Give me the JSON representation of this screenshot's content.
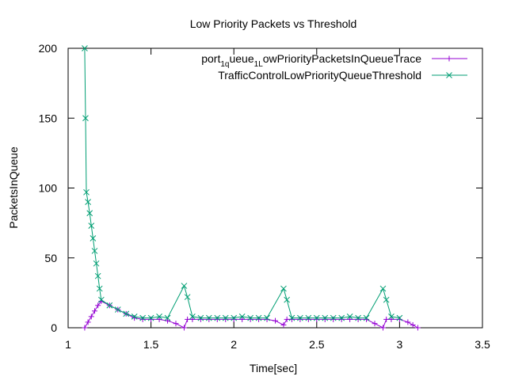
{
  "chart_data": {
    "type": "line",
    "title": "Low Priority Packets vs Threshold",
    "xlabel": "Time[sec]",
    "ylabel": "PacketsInQueue",
    "xlim": [
      1,
      3.5
    ],
    "ylim": [
      0,
      200
    ],
    "xticks": [
      "1",
      "1.5",
      "2",
      "2.5",
      "3",
      "3.5"
    ],
    "xtick_values": [
      1,
      1.5,
      2,
      2.5,
      3,
      3.5
    ],
    "yticks": [
      "0",
      "50",
      "100",
      "150",
      "200"
    ],
    "ytick_values": [
      0,
      50,
      100,
      150,
      200
    ],
    "grid": false,
    "legend_position": "top-right",
    "series": [
      {
        "name": "port_1_queue_1_LowPriorityPacketsInQueueTrace",
        "legend_parts": {
          "base1": "port",
          "sub1": "1",
          "base2": "q",
          "mid": "ueue",
          "sub2": "1",
          "base3": "L",
          "end": "owPriorityPacketsInQueueTrace"
        },
        "color": "#9400d3",
        "marker": "plus",
        "x": [
          1.1,
          1.12,
          1.14,
          1.16,
          1.18,
          1.2,
          1.25,
          1.3,
          1.35,
          1.4,
          1.45,
          1.5,
          1.55,
          1.6,
          1.65,
          1.7,
          1.72,
          1.75,
          1.8,
          1.85,
          1.9,
          1.95,
          2.0,
          2.05,
          2.1,
          2.15,
          2.2,
          2.25,
          2.3,
          2.32,
          2.35,
          2.4,
          2.45,
          2.5,
          2.55,
          2.6,
          2.65,
          2.7,
          2.75,
          2.8,
          2.85,
          2.9,
          2.92,
          2.95,
          3.0,
          3.05,
          3.08,
          3.11
        ],
        "y": [
          0,
          4,
          8,
          12,
          16,
          19,
          16,
          13,
          10,
          7,
          6,
          6,
          6,
          5,
          3,
          0,
          6,
          6,
          6,
          6,
          6,
          6,
          6,
          6,
          6,
          6,
          6,
          5,
          2,
          6,
          6,
          6,
          6,
          6,
          6,
          6,
          6,
          6,
          6,
          6,
          3,
          0,
          6,
          6,
          6,
          4,
          2,
          0
        ]
      },
      {
        "name": "TrafficControlLowPriorityQueueThreshold",
        "color": "#009e73",
        "marker": "x",
        "x": [
          1.1,
          1.105,
          1.11,
          1.12,
          1.13,
          1.14,
          1.15,
          1.16,
          1.17,
          1.18,
          1.19,
          1.2,
          1.25,
          1.3,
          1.35,
          1.4,
          1.45,
          1.5,
          1.55,
          1.6,
          1.7,
          1.72,
          1.75,
          1.8,
          1.85,
          1.9,
          1.95,
          2.0,
          2.05,
          2.1,
          2.15,
          2.2,
          2.3,
          2.32,
          2.35,
          2.4,
          2.45,
          2.5,
          2.55,
          2.6,
          2.65,
          2.7,
          2.75,
          2.8,
          2.9,
          2.92,
          2.95,
          3.0
        ],
        "y": [
          200,
          150,
          97,
          90,
          82,
          73,
          64,
          55,
          46,
          37,
          28,
          20,
          16,
          13,
          10,
          8,
          7,
          7,
          8,
          7,
          30,
          22,
          8,
          7,
          7,
          7,
          7,
          7,
          8,
          7,
          7,
          7,
          28,
          20,
          7,
          7,
          7,
          7,
          7,
          7,
          7,
          8,
          7,
          7,
          28,
          20,
          8,
          7
        ]
      }
    ]
  }
}
